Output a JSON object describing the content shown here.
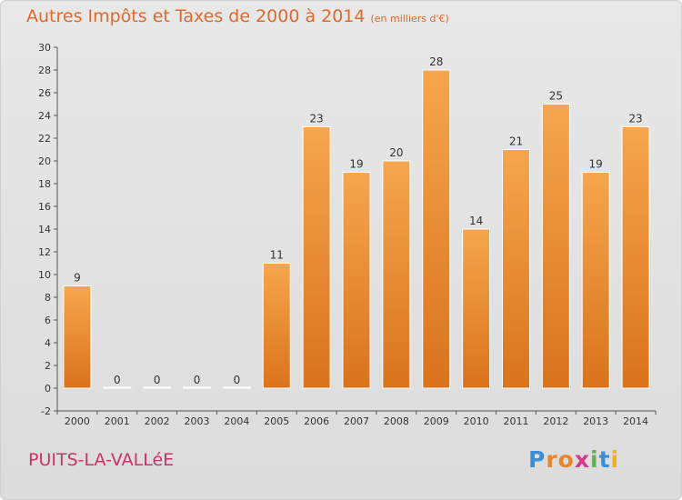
{
  "title": "Autres Impôts et Taxes de 2000 à 2014",
  "unit_note": "(en milliers d'€)",
  "place_name": "PUITS-LA-VALLéE",
  "logo": "Proxiti",
  "colors": {
    "bar_top": "#f6a64e",
    "bar_bottom": "#d9731c",
    "title": "#e06a2c",
    "place": "#d0306a"
  },
  "chart_data": {
    "type": "bar",
    "title": "Autres Impôts et Taxes de 2000 à 2014",
    "subtitle": "(en milliers d'€)",
    "xlabel": "",
    "ylabel": "",
    "categories": [
      "2000",
      "2001",
      "2002",
      "2003",
      "2004",
      "2005",
      "2006",
      "2007",
      "2008",
      "2009",
      "2010",
      "2011",
      "2012",
      "2013",
      "2014"
    ],
    "values": [
      9,
      0,
      0,
      0,
      0,
      11,
      23,
      19,
      20,
      28,
      14,
      21,
      25,
      19,
      23
    ],
    "data_labels": [
      "9",
      "0",
      "0",
      "0",
      "0",
      "11",
      "23",
      "19",
      "20",
      "28",
      "14",
      "21",
      "25",
      "19",
      "23"
    ],
    "ylim": [
      -2,
      30
    ],
    "yticks": [
      -2,
      0,
      2,
      4,
      6,
      8,
      10,
      12,
      14,
      16,
      18,
      20,
      22,
      24,
      26,
      28,
      30
    ],
    "grid": false,
    "legend": "none"
  }
}
